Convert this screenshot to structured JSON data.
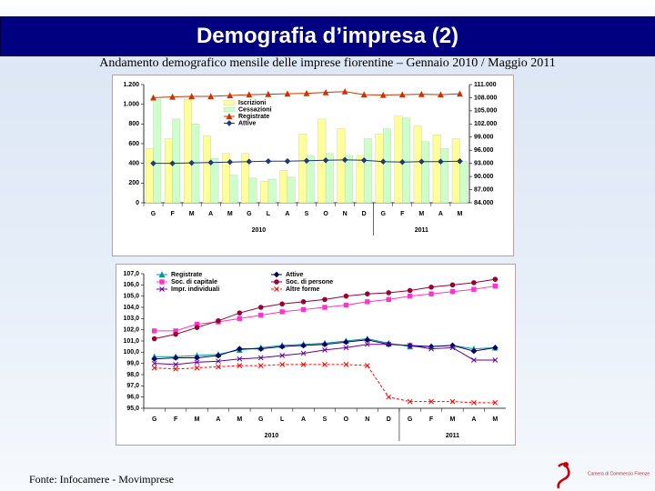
{
  "slide": {
    "title": "Demografia d’impresa (2)",
    "subtitle": "Andamento demografico mensile delle imprese fiorentine – Gennaio 2010 / Maggio 2011",
    "source": "Fonte: Infocamere - Movimprese",
    "logo_text": "Camera di Commercio Firenze"
  },
  "chart_data": [
    {
      "type": "bar",
      "categories": [
        "G",
        "F",
        "M",
        "A",
        "M",
        "G",
        "L",
        "A",
        "S",
        "O",
        "N",
        "D",
        "G",
        "F",
        "M",
        "A",
        "M"
      ],
      "year_labels": [
        "2010",
        "2011"
      ],
      "ylim": [
        0,
        1200
      ],
      "yticks": [
        0,
        200,
        400,
        600,
        800,
        {
          "value": 1000,
          "label": "1.000"
        },
        {
          "value": 1200,
          "label": "1.200"
        }
      ],
      "y2lim": [
        84000,
        111000
      ],
      "y2ticks": [
        {
          "value": 84000,
          "label": "84.000"
        },
        {
          "value": 87000,
          "label": "87.000"
        },
        {
          "value": 90000,
          "label": "90.000"
        },
        {
          "value": 93000,
          "label": "93.000"
        },
        {
          "value": 96000,
          "label": "96.000"
        },
        {
          "value": 99000,
          "label": "99.000"
        },
        {
          "value": 102000,
          "label": "102.000"
        },
        {
          "value": 105000,
          "label": "105.000"
        },
        {
          "value": 108000,
          "label": "108.000"
        },
        {
          "value": 111000,
          "label": "111.000"
        }
      ],
      "series": [
        {
          "name": "Iscrizioni",
          "color": "#ffff99",
          "values": [
            550,
            650,
            1050,
            680,
            500,
            500,
            220,
            330,
            700,
            850,
            750,
            480,
            700,
            880,
            780,
            690,
            650
          ]
        },
        {
          "name": "Cessazioni",
          "color": "#ccffcc",
          "values": [
            1050,
            850,
            800,
            450,
            280,
            250,
            240,
            260,
            480,
            500,
            480,
            650,
            750,
            860,
            620,
            550,
            420
          ]
        },
        {
          "name": "Registrate",
          "color": "#cc3300",
          "type": "line",
          "marker": "triangle",
          "axis": "y2",
          "values": [
            108000,
            108200,
            108300,
            108300,
            108500,
            108700,
            108800,
            108900,
            109000,
            109200,
            109400,
            108700,
            108600,
            108700,
            108800,
            108700,
            108900
          ]
        },
        {
          "name": "Attive",
          "color": "#1f3a7a",
          "type": "line",
          "marker": "diamond",
          "axis": "y2",
          "values": [
            93000,
            93000,
            93100,
            93200,
            93300,
            93400,
            93500,
            93500,
            93600,
            93700,
            93800,
            93700,
            93400,
            93300,
            93400,
            93400,
            93500
          ]
        }
      ]
    },
    {
      "type": "line",
      "categories": [
        "G",
        "F",
        "M",
        "A",
        "M",
        "G",
        "L",
        "A",
        "S",
        "O",
        "N",
        "D",
        "G",
        "F",
        "M",
        "A",
        "M"
      ],
      "year_labels": [
        "2010",
        "2011"
      ],
      "ylim": [
        95,
        107
      ],
      "yticks": [
        {
          "value": 95,
          "label": "95,0"
        },
        {
          "value": 96,
          "label": "96,0"
        },
        {
          "value": 97,
          "label": "97,0"
        },
        {
          "value": 98,
          "label": "98,0"
        },
        {
          "value": 99,
          "label": "99,0"
        },
        {
          "value": 100,
          "label": "100,0"
        },
        {
          "value": 101,
          "label": "101,0"
        },
        {
          "value": 102,
          "label": "102,0"
        },
        {
          "value": 103,
          "label": "103,0"
        },
        {
          "value": 104,
          "label": "104,0"
        },
        {
          "value": 105,
          "label": "105,0"
        },
        {
          "value": 106,
          "label": "106,0"
        },
        {
          "value": 107,
          "label": "107,0"
        }
      ],
      "series": [
        {
          "name": "Registrate",
          "color": "#009999",
          "marker": "triangle",
          "values": [
            99.6,
            99.6,
            99.7,
            99.8,
            100.2,
            100.4,
            100.6,
            100.7,
            100.8,
            101.0,
            101.2,
            100.8,
            100.5,
            100.5,
            100.6,
            100.3,
            100.4
          ]
        },
        {
          "name": "Attive",
          "color": "#000066",
          "marker": "diamond",
          "values": [
            99.4,
            99.5,
            99.5,
            99.7,
            100.3,
            100.3,
            100.5,
            100.6,
            100.7,
            100.9,
            101.1,
            100.7,
            100.6,
            100.5,
            100.6,
            100.1,
            100.4
          ]
        },
        {
          "name": "Soc. di capitale",
          "color": "#ff33cc",
          "marker": "square",
          "values": [
            101.9,
            101.9,
            102.5,
            102.7,
            103.0,
            103.3,
            103.6,
            103.8,
            104.0,
            104.2,
            104.5,
            104.7,
            105.0,
            105.2,
            105.4,
            105.6,
            105.9
          ]
        },
        {
          "name": "Soc. di persone",
          "color": "#990033",
          "marker": "circle",
          "values": [
            101.2,
            101.6,
            102.2,
            102.8,
            103.5,
            104.0,
            104.3,
            104.5,
            104.7,
            105.0,
            105.2,
            105.3,
            105.5,
            105.8,
            106.0,
            106.2,
            106.5
          ]
        },
        {
          "name": "Impr. individuali",
          "color": "#660099",
          "marker": "x",
          "values": [
            99.0,
            98.9,
            99.1,
            99.2,
            99.4,
            99.5,
            99.7,
            99.9,
            100.2,
            100.4,
            100.7,
            100.7,
            100.6,
            100.3,
            100.4,
            99.3,
            99.3
          ]
        },
        {
          "name": "Altre forme",
          "color": "#ff0000",
          "marker": "x",
          "dashed": true,
          "values": [
            98.6,
            98.5,
            98.6,
            98.7,
            98.8,
            98.8,
            98.9,
            98.9,
            98.9,
            98.9,
            98.8,
            96.0,
            95.6,
            95.6,
            95.6,
            95.5,
            95.5
          ]
        }
      ]
    }
  ]
}
